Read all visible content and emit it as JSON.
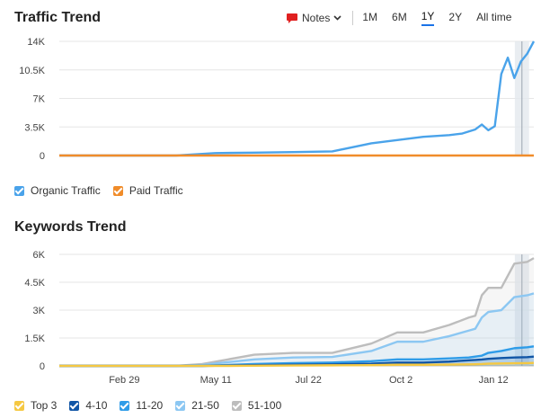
{
  "traffic": {
    "title": "Traffic Trend",
    "toolbar": {
      "notes_label": "Notes",
      "ranges": [
        "1M",
        "6M",
        "1Y",
        "2Y",
        "All time"
      ],
      "active_range": "1Y"
    },
    "legend": [
      {
        "label": "Organic Traffic",
        "color": "#4aa3ea"
      },
      {
        "label": "Paid Traffic",
        "color": "#f08c2a"
      }
    ]
  },
  "keywords": {
    "title": "Keywords Trend",
    "legend": [
      {
        "label": "Top 3",
        "color": "#f5c842"
      },
      {
        "label": "4-10",
        "color": "#1156a6"
      },
      {
        "label": "11-20",
        "color": "#2f9ce8"
      },
      {
        "label": "21-50",
        "color": "#8cc7f2"
      },
      {
        "label": "51-100",
        "color": "#bdbdbd"
      }
    ]
  },
  "chart_data": [
    {
      "type": "line",
      "title": "Traffic Trend",
      "ylim": [
        0,
        14000
      ],
      "yticks": [
        "14K",
        "10.5K",
        "7K",
        "3.5K",
        "0"
      ],
      "x": [
        0,
        30,
        60,
        90,
        120,
        150,
        180,
        210,
        240,
        260,
        280,
        300,
        310,
        320,
        325,
        330,
        335,
        340,
        345,
        350,
        355,
        360,
        365
      ],
      "series": [
        {
          "name": "Organic Traffic",
          "color": "#4aa3ea",
          "values": [
            0,
            0,
            0,
            0,
            300,
            350,
            420,
            500,
            1500,
            1900,
            2300,
            2500,
            2700,
            3200,
            3800,
            3100,
            3600,
            10000,
            12000,
            9500,
            11500,
            12500,
            14000
          ]
        },
        {
          "name": "Paid Traffic",
          "color": "#f08c2a",
          "values": [
            0,
            0,
            0,
            0,
            0,
            0,
            0,
            0,
            0,
            0,
            0,
            0,
            0,
            0,
            0,
            0,
            0,
            0,
            0,
            0,
            0,
            0,
            0
          ]
        }
      ]
    },
    {
      "type": "area",
      "title": "Keywords Trend",
      "ylim": [
        0,
        6000
      ],
      "yticks": [
        "6K",
        "4.5K",
        "3K",
        "1.5K",
        "0"
      ],
      "xticks": [
        "Feb 29",
        "May 11",
        "Jul 22",
        "Oct 2",
        "Jan 12"
      ],
      "x": [
        0,
        30,
        60,
        90,
        110,
        130,
        150,
        180,
        210,
        240,
        260,
        280,
        300,
        315,
        320,
        325,
        330,
        340,
        350,
        360,
        365
      ],
      "series": [
        {
          "name": "51-100",
          "color": "#bdbdbd",
          "values": [
            0,
            0,
            0,
            0,
            100,
            350,
            600,
            700,
            700,
            1200,
            1800,
            1800,
            2200,
            2600,
            2700,
            3800,
            4200,
            4200,
            5500,
            5600,
            5800
          ]
        },
        {
          "name": "21-50",
          "color": "#8cc7f2",
          "values": [
            0,
            0,
            0,
            0,
            50,
            200,
            350,
            450,
            480,
            800,
            1300,
            1300,
            1600,
            1900,
            2000,
            2600,
            2900,
            3000,
            3700,
            3800,
            3900
          ]
        },
        {
          "name": "11-20",
          "color": "#2f9ce8",
          "values": [
            0,
            0,
            0,
            0,
            0,
            50,
            100,
            150,
            180,
            250,
            350,
            350,
            400,
            450,
            500,
            550,
            700,
            800,
            950,
            1000,
            1050
          ]
        },
        {
          "name": "4-10",
          "color": "#1156a6",
          "values": [
            0,
            0,
            0,
            0,
            0,
            20,
            40,
            60,
            80,
            120,
            180,
            180,
            230,
            300,
            320,
            340,
            380,
            420,
            450,
            470,
            500
          ]
        },
        {
          "name": "Top 3",
          "color": "#f5c842",
          "values": [
            0,
            0,
            0,
            0,
            0,
            0,
            10,
            20,
            30,
            40,
            60,
            60,
            70,
            80,
            90,
            100,
            120,
            130,
            140,
            150,
            160
          ]
        }
      ]
    }
  ]
}
